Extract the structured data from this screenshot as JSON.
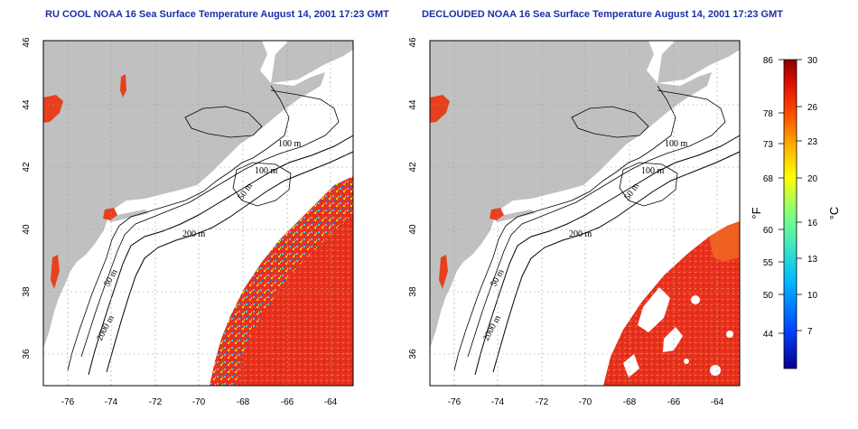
{
  "panels": [
    {
      "id": "left",
      "title": "RU COOL NOAA 16 Sea Surface Temperature August 14, 2001 17:23 GMT",
      "contour_labels": [
        "100 m",
        "100 m",
        "50 m",
        "200 m",
        "50 m",
        "2000 m"
      ]
    },
    {
      "id": "right",
      "title": "DECLOUDED NOAA 16 Sea Surface Temperature August 14, 2001 17:23 GMT",
      "contour_labels": [
        "100 m",
        "100 m",
        "50 m",
        "200 m",
        "50 m",
        "2000 m"
      ]
    }
  ],
  "axes": {
    "lon_ticks": [
      "-76",
      "-74",
      "-72",
      "-70",
      "-68",
      "-66",
      "-64"
    ],
    "lat_ticks": [
      "46",
      "44",
      "42",
      "40",
      "38",
      "36"
    ],
    "lon_range": [
      -77,
      -63
    ],
    "lat_range": [
      35,
      46
    ],
    "grid": true
  },
  "colorbar": {
    "fahrenheit_ticks": [
      "86",
      "78",
      "73",
      "68",
      "60",
      "55",
      "50",
      "44"
    ],
    "celsius_ticks": [
      "30",
      "26",
      "23",
      "20",
      "16",
      "13",
      "10",
      "7"
    ],
    "fahrenheit_unit": "°F",
    "celsius_unit": "°C",
    "colors": [
      "#08008a",
      "#0040ff",
      "#00b8ff",
      "#40e8c0",
      "#80ff80",
      "#ffff00",
      "#ffb000",
      "#ff5000",
      "#e01000",
      "#8a0000"
    ]
  },
  "colors": {
    "land": "#c0c0c0",
    "warm_sst": "#e8321e",
    "contour": "#000000",
    "grid": "#a0a0a0",
    "title": "#1c2fa6"
  }
}
